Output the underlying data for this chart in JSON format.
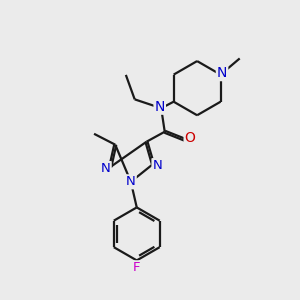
{
  "bg_color": "#ebebeb",
  "bond_color": "#1a1a1a",
  "N_color": "#0000cc",
  "O_color": "#cc0000",
  "F_color": "#cc00cc",
  "line_width": 1.6,
  "font_size": 9,
  "figsize": [
    3.0,
    3.0
  ],
  "dpi": 100,
  "xlim": [
    0,
    10
  ],
  "ylim": [
    0,
    10
  ]
}
